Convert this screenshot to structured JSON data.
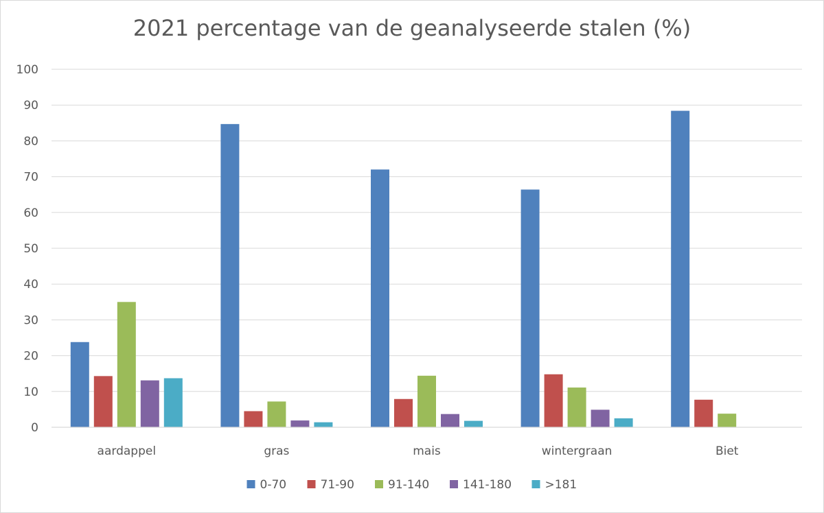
{
  "chart_data": {
    "type": "bar",
    "title": "2021 percentage van de geanalyseerde stalen (%)",
    "xlabel": "",
    "ylabel": "",
    "ylim": [
      0,
      100
    ],
    "yticks": [
      0,
      10,
      20,
      30,
      40,
      50,
      60,
      70,
      80,
      90,
      100
    ],
    "grid": true,
    "legend_position": "bottom",
    "categories": [
      "aardappel",
      "gras",
      "mais",
      "wintergraan",
      "Biet"
    ],
    "series": [
      {
        "name": "0-70",
        "color": "#4f81bd",
        "values": [
          23.8,
          84.7,
          72.0,
          66.4,
          88.4
        ]
      },
      {
        "name": "71-90",
        "color": "#c0504d",
        "values": [
          14.3,
          4.5,
          7.9,
          14.8,
          7.7
        ]
      },
      {
        "name": "91-140",
        "color": "#9bbb59",
        "values": [
          35.0,
          7.2,
          14.4,
          11.1,
          3.8
        ]
      },
      {
        "name": "141-180",
        "color": "#8064a2",
        "values": [
          13.1,
          1.9,
          3.7,
          4.9,
          0
        ]
      },
      {
        "name": ">181",
        "color": "#4bacc6",
        "values": [
          13.7,
          1.4,
          1.8,
          2.5,
          0
        ]
      }
    ]
  }
}
